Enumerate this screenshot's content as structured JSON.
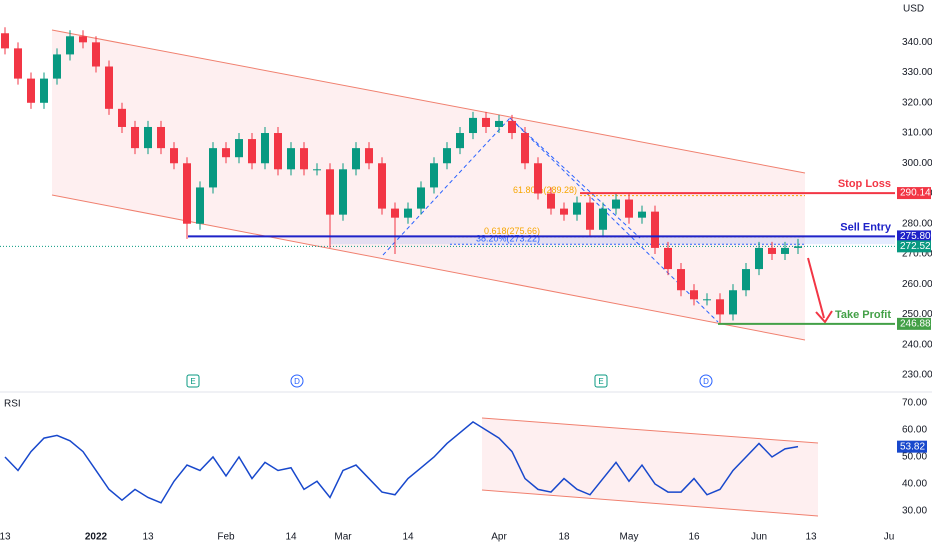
{
  "chart_data": [
    {
      "type": "candlestick",
      "unit": "USD",
      "categories": [
        "13",
        null,
        null,
        null,
        null,
        null,
        null,
        "2022",
        null,
        null,
        null,
        "13",
        null,
        null,
        null,
        null,
        null,
        "Feb",
        null,
        null,
        null,
        null,
        "14",
        null,
        null,
        null,
        "Mar",
        null,
        null,
        null,
        null,
        "14",
        null,
        null,
        null,
        null,
        null,
        null,
        "Apr",
        null,
        null,
        null,
        null,
        "18",
        null,
        null,
        null,
        null,
        "May",
        null,
        null,
        null,
        null,
        "16",
        null,
        null,
        null,
        null,
        "Jun",
        null,
        null,
        null,
        "13",
        null,
        null,
        null,
        null,
        null,
        "Ju"
      ],
      "open": [
        343,
        338,
        328,
        320,
        328,
        336,
        342,
        340,
        332,
        318,
        312,
        305,
        312,
        305,
        300,
        280,
        292,
        305,
        302,
        308,
        300,
        310,
        298,
        305,
        298,
        298,
        283,
        298,
        305,
        300,
        285,
        282,
        285,
        292,
        300,
        305,
        310,
        315,
        312,
        314,
        310,
        300,
        290,
        285,
        283,
        287,
        278,
        285,
        288,
        282,
        284,
        272,
        265,
        258,
        255,
        255,
        250,
        258,
        265,
        272,
        270,
        272,
        null,
        null,
        null,
        null,
        null,
        null,
        null
      ],
      "high": [
        345,
        340,
        330,
        330,
        338,
        344,
        344,
        342,
        334,
        320,
        314,
        314,
        314,
        307,
        302,
        294,
        307,
        307,
        310,
        310,
        312,
        312,
        307,
        307,
        300,
        300,
        300,
        307,
        307,
        302,
        287,
        287,
        294,
        302,
        307,
        312,
        317,
        317,
        316,
        316,
        312,
        302,
        292,
        287,
        289,
        289,
        287,
        290,
        290,
        286,
        286,
        274,
        267,
        260,
        257,
        257,
        260,
        267,
        274,
        274,
        274,
        275,
        null,
        null,
        null,
        null,
        null,
        null,
        null
      ],
      "low": [
        336,
        326,
        318,
        318,
        326,
        334,
        338,
        330,
        316,
        310,
        303,
        303,
        303,
        298,
        275,
        278,
        290,
        300,
        300,
        298,
        298,
        296,
        296,
        296,
        296,
        272,
        281,
        296,
        298,
        283,
        270,
        280,
        283,
        290,
        298,
        303,
        308,
        310,
        310,
        308,
        298,
        288,
        283,
        281,
        281,
        276,
        276,
        283,
        280,
        280,
        270,
        263,
        256,
        253,
        253,
        246.88,
        248,
        256,
        263,
        268,
        268,
        270,
        null,
        null,
        null,
        null,
        null,
        null,
        null
      ],
      "close": [
        338,
        328,
        320,
        328,
        336,
        342,
        340,
        332,
        318,
        312,
        305,
        312,
        305,
        300,
        280,
        292,
        305,
        302,
        308,
        300,
        310,
        298,
        305,
        298,
        298,
        283,
        298,
        305,
        300,
        285,
        282,
        285,
        292,
        300,
        305,
        310,
        315,
        312,
        314,
        310,
        300,
        290,
        285,
        283,
        287,
        278,
        285,
        288,
        282,
        284,
        272,
        265,
        258,
        255,
        255,
        250,
        258,
        265,
        272,
        270,
        272,
        272.52,
        null,
        null,
        null,
        null,
        null,
        null,
        null
      ],
      "up_color": "#089981",
      "down_color": "#f23645",
      "ylim": [
        225,
        354
      ],
      "yticks": [
        {
          "value": 340,
          "label": "340.00"
        },
        {
          "value": 330,
          "label": "330.00"
        },
        {
          "value": 320,
          "label": "320.00"
        },
        {
          "value": 310,
          "label": "310.00"
        },
        {
          "value": 300,
          "label": "300.00"
        },
        {
          "value": 290,
          "label": "290.00"
        },
        {
          "value": 280,
          "label": "280.00"
        },
        {
          "value": 270,
          "label": "270.00"
        },
        {
          "value": 260,
          "label": "260.00"
        },
        {
          "value": 250,
          "label": "250.00"
        },
        {
          "value": 240,
          "label": "240.00"
        },
        {
          "value": 230,
          "label": "230.00"
        }
      ],
      "levels": [
        {
          "name": "Stop Loss",
          "price": {
            "value": 290.14,
            "label": "290.14"
          },
          "color": "#f23645"
        },
        {
          "name": "Sell Entry",
          "price": {
            "value": 275.8,
            "label": "275.80"
          },
          "color": "#1e22c8"
        },
        {
          "name": "Take Profit",
          "price": {
            "value": 246.88,
            "label": "246.88"
          },
          "color": "#43a047"
        }
      ],
      "fib_levels": [
        {
          "label": "61.80%(289.28)",
          "value": 289.28,
          "color": "#f7a600"
        },
        {
          "label": "0.618(275.66)",
          "value": 275.66,
          "color": "#f7a600"
        },
        {
          "label": "38.20%(273.22)",
          "value": 273.22,
          "color": "#2962ff"
        }
      ],
      "events": [
        "E",
        "D",
        "E",
        "D"
      ]
    },
    {
      "type": "line",
      "title": "RSI",
      "color": "#1848cc",
      "values": [
        50,
        45,
        52,
        57,
        58,
        56,
        52,
        45,
        38,
        34,
        38,
        35,
        33,
        41,
        47,
        45,
        50,
        43,
        50,
        42,
        48,
        45,
        46,
        38,
        41,
        35,
        45,
        47,
        42,
        37,
        36,
        42,
        46,
        50,
        55,
        59,
        63,
        60,
        57,
        52,
        42,
        38,
        37,
        42,
        38,
        36,
        42,
        48,
        41,
        47,
        40,
        37,
        37,
        42,
        36,
        38,
        45,
        50,
        55,
        50,
        53,
        53.82,
        null,
        null,
        null,
        null,
        null,
        null,
        null
      ],
      "ylim": [
        24.8,
        73.7
      ],
      "yticks": [
        {
          "value": 70,
          "label": "70.00"
        },
        {
          "value": 60,
          "label": "60.00"
        },
        {
          "value": 50,
          "label": "50.00"
        },
        {
          "value": 40,
          "label": "40.00"
        },
        {
          "value": 30,
          "label": "30.00"
        }
      ]
    }
  ]
}
